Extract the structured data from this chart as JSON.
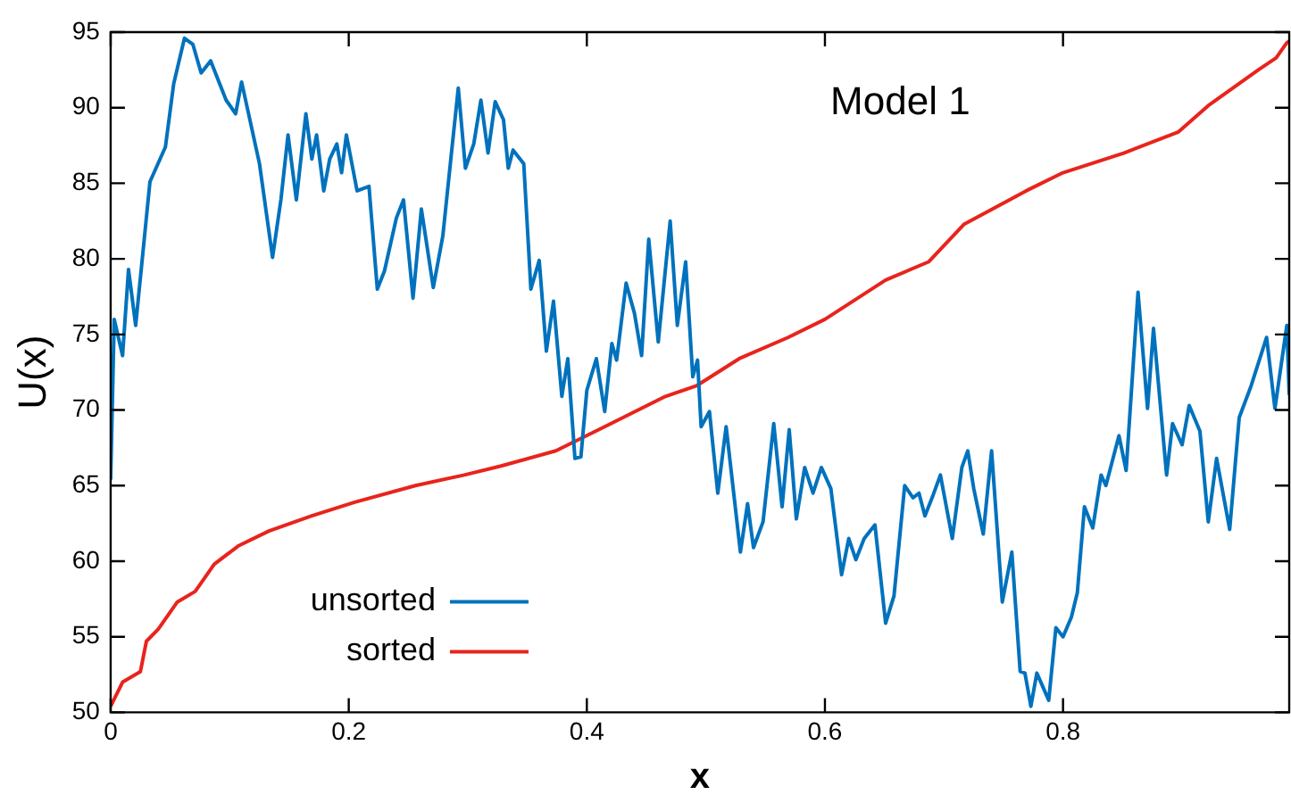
{
  "chart_data": {
    "type": "line",
    "xlabel": "x",
    "ylabel": "U(x)",
    "annotations": [
      "Model 1"
    ],
    "xlim": [
      0,
      0.99
    ],
    "xticks": [
      0,
      0.2,
      0.4,
      0.6,
      0.8
    ],
    "ylim": [
      50,
      95
    ],
    "yticks": [
      50,
      55,
      60,
      65,
      70,
      75,
      80,
      85,
      90,
      95
    ],
    "grid": false,
    "legend": "bottom left",
    "marker": "none",
    "line_style": "solid",
    "series": [
      {
        "name": "unsorted",
        "color": "#0072bd",
        "x": [
          0,
          0.003,
          0.01,
          0.015,
          0.021,
          0.033,
          0.046,
          0.053,
          0.062,
          0.069,
          0.076,
          0.084,
          0.097,
          0.105,
          0.11,
          0.125,
          0.136,
          0.143,
          0.149,
          0.156,
          0.164,
          0.169,
          0.173,
          0.179,
          0.184,
          0.19,
          0.194,
          0.198,
          0.207,
          0.217,
          0.224,
          0.23,
          0.24,
          0.246,
          0.254,
          0.261,
          0.271,
          0.279,
          0.286,
          0.292,
          0.298,
          0.305,
          0.311,
          0.317,
          0.323,
          0.33,
          0.334,
          0.338,
          0.347,
          0.353,
          0.36,
          0.366,
          0.372,
          0.379,
          0.384,
          0.39,
          0.395,
          0.4,
          0.408,
          0.415,
          0.421,
          0.425,
          0.433,
          0.44,
          0.446,
          0.452,
          0.46,
          0.47,
          0.476,
          0.483,
          0.489,
          0.493,
          0.496,
          0.503,
          0.51,
          0.517,
          0.529,
          0.535,
          0.54,
          0.548,
          0.557,
          0.564,
          0.57,
          0.576,
          0.583,
          0.59,
          0.597,
          0.605,
          0.614,
          0.62,
          0.626,
          0.633,
          0.642,
          0.651,
          0.658,
          0.667,
          0.674,
          0.679,
          0.684,
          0.691,
          0.697,
          0.707,
          0.715,
          0.72,
          0.725,
          0.733,
          0.74,
          0.749,
          0.757,
          0.764,
          0.768,
          0.773,
          0.778,
          0.788,
          0.794,
          0.8,
          0.807,
          0.812,
          0.818,
          0.825,
          0.832,
          0.836,
          0.842,
          0.847,
          0.853,
          0.863,
          0.871,
          0.876,
          0.887,
          0.892,
          0.9,
          0.906,
          0.915,
          0.922,
          0.929,
          0.94,
          0.948,
          0.958,
          0.971,
          0.978,
          0.988,
          0.99
        ],
        "values": [
          65.4,
          76.0,
          73.6,
          79.3,
          75.6,
          85.1,
          87.4,
          91.6,
          94.6,
          94.2,
          92.3,
          93.1,
          90.5,
          89.6,
          91.7,
          86.3,
          80.1,
          83.9,
          88.2,
          83.9,
          89.6,
          86.6,
          88.2,
          84.5,
          86.6,
          87.6,
          85.7,
          88.2,
          84.5,
          84.8,
          78.0,
          79.2,
          82.7,
          83.9,
          77.4,
          83.3,
          78.1,
          81.5,
          86.8,
          91.3,
          86.0,
          87.6,
          90.5,
          87.0,
          90.4,
          89.2,
          86.0,
          87.2,
          86.3,
          78.0,
          79.9,
          73.9,
          77.2,
          70.9,
          73.4,
          66.8,
          66.9,
          71.3,
          73.4,
          69.9,
          74.4,
          73.3,
          78.4,
          76.4,
          73.6,
          81.3,
          74.5,
          82.5,
          75.6,
          79.8,
          72.2,
          73.3,
          68.9,
          69.9,
          64.5,
          68.9,
          60.6,
          63.8,
          60.9,
          62.6,
          69.1,
          63.6,
          68.7,
          62.8,
          66.2,
          64.5,
          66.2,
          64.8,
          59.1,
          61.5,
          60.1,
          61.5,
          62.4,
          55.9,
          57.7,
          65.0,
          64.2,
          64.5,
          63.0,
          64.4,
          65.7,
          61.5,
          66.2,
          67.3,
          64.8,
          61.8,
          67.3,
          57.3,
          60.6,
          52.7,
          52.6,
          50.4,
          52.6,
          50.8,
          55.6,
          55.0,
          56.3,
          57.9,
          63.6,
          62.2,
          65.7,
          65.0,
          66.8,
          68.3,
          66.0,
          77.8,
          70.1,
          75.4,
          65.7,
          69.1,
          67.7,
          70.3,
          68.6,
          62.6,
          66.8,
          62.1,
          69.5,
          71.6,
          74.8,
          70.1,
          75.6,
          71.0
        ]
      },
      {
        "name": "sorted",
        "color": "#e8241c",
        "x": [
          0,
          0.01,
          0.025,
          0.03,
          0.04,
          0.056,
          0.071,
          0.087,
          0.107,
          0.133,
          0.169,
          0.205,
          0.256,
          0.297,
          0.328,
          0.374,
          0.415,
          0.466,
          0.492,
          0.528,
          0.569,
          0.6,
          0.651,
          0.687,
          0.717,
          0.769,
          0.8,
          0.851,
          0.897,
          0.923,
          0.964,
          0.979,
          0.988,
          0.99
        ],
        "values": [
          50.4,
          52.0,
          52.7,
          54.7,
          55.5,
          57.3,
          58.0,
          59.8,
          61.0,
          62.0,
          63.0,
          63.9,
          65.0,
          65.7,
          66.3,
          67.3,
          68.9,
          70.9,
          71.6,
          73.4,
          74.8,
          76.0,
          78.6,
          79.8,
          82.3,
          84.5,
          85.7,
          87.0,
          88.4,
          90.2,
          92.5,
          93.3,
          94.3,
          94.4
        ]
      }
    ]
  }
}
